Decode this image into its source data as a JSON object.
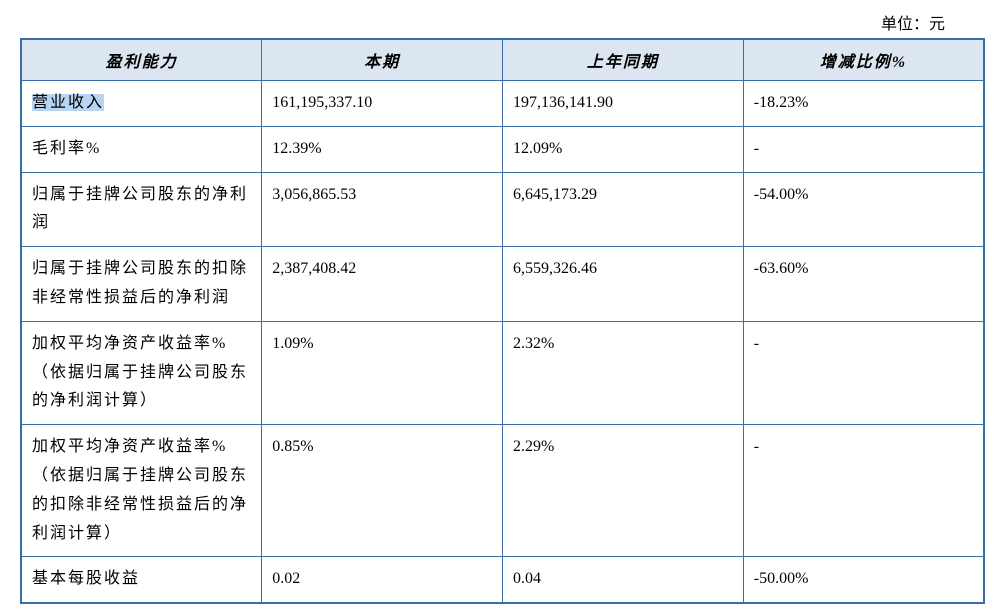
{
  "unit_label": "单位：元",
  "headers": {
    "profitability": "盈利能力",
    "current_period": "本期",
    "prior_year_period": "上年同期",
    "change_pct": "增减比例%"
  },
  "rows": [
    {
      "label": "营业收入",
      "current": "161,195,337.10",
      "prior": "197,136,141.90",
      "change": "-18.23%",
      "highlight": true
    },
    {
      "label": "毛利率%",
      "current": "12.39%",
      "prior": "12.09%",
      "change": "-"
    },
    {
      "label": "归属于挂牌公司股东的净利润",
      "current": "3,056,865.53",
      "prior": "6,645,173.29",
      "change": "-54.00%"
    },
    {
      "label": "归属于挂牌公司股东的扣除非经常性损益后的净利润",
      "current": "2,387,408.42",
      "prior": "6,559,326.46",
      "change": "-63.60%"
    },
    {
      "label": "加权平均净资产收益率%（依据归属于挂牌公司股东的净利润计算）",
      "current": "1.09%",
      "prior": "2.32%",
      "change": "-"
    },
    {
      "label": "加权平均净资产收益率%（依据归属于挂牌公司股东的扣除非经常性损益后的净利润计算）",
      "current": "0.85%",
      "prior": "2.29%",
      "change": "-"
    },
    {
      "label": "基本每股收益",
      "current": "0.02",
      "prior": "0.04",
      "change": "-50.00%"
    }
  ],
  "styling": {
    "border_color": "#3a6ca8",
    "header_bg": "#dce6f0",
    "highlight_bg": "#b8d4f0",
    "text_color": "#000000",
    "font_size_pt": 12,
    "column_widths_pct": [
      25,
      25,
      25,
      25
    ]
  }
}
